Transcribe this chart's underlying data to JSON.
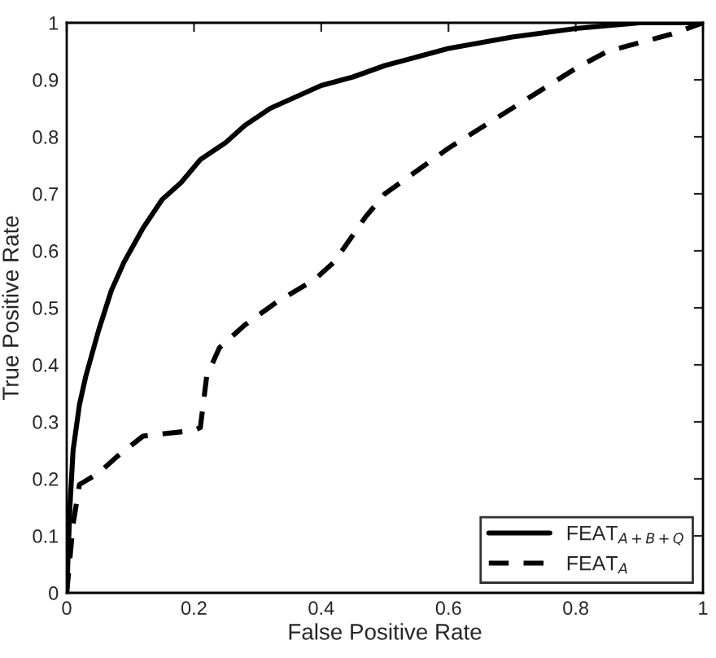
{
  "chart_data": {
    "type": "line",
    "xlabel": "False Positive Rate",
    "ylabel": "True Positive Rate",
    "xlim": [
      0,
      1
    ],
    "ylim": [
      0,
      1
    ],
    "xticks": [
      0,
      0.2,
      0.4,
      0.6,
      0.8,
      1
    ],
    "yticks": [
      0,
      0.1,
      0.2,
      0.3,
      0.4,
      0.5,
      0.6,
      0.7,
      0.8,
      0.9,
      1
    ],
    "grid": false,
    "legend": "bottom right",
    "series": [
      {
        "name": "FEAT$_{A+B+Q}$",
        "color": "#000000",
        "line_style": "solid",
        "x": [
          0,
          0.005,
          0.01,
          0.02,
          0.03,
          0.05,
          0.07,
          0.09,
          0.12,
          0.15,
          0.18,
          0.21,
          0.25,
          0.28,
          0.32,
          0.36,
          0.4,
          0.45,
          0.5,
          0.55,
          0.6,
          0.7,
          0.8,
          0.9,
          1
        ],
        "values": [
          0,
          0.15,
          0.25,
          0.33,
          0.38,
          0.46,
          0.53,
          0.58,
          0.64,
          0.69,
          0.72,
          0.76,
          0.79,
          0.82,
          0.85,
          0.87,
          0.89,
          0.905,
          0.925,
          0.94,
          0.955,
          0.975,
          0.99,
          1,
          1
        ]
      },
      {
        "name": "FEAT$_{A}$",
        "color": "#000000",
        "line_style": "dashed",
        "x": [
          0,
          0.01,
          0.02,
          0.05,
          0.08,
          0.12,
          0.2,
          0.21,
          0.22,
          0.24,
          0.28,
          0.33,
          0.39,
          0.42,
          0.47,
          0.5,
          0.55,
          0.6,
          0.7,
          0.8,
          0.85,
          0.95,
          1
        ],
        "values": [
          0,
          0.12,
          0.19,
          0.21,
          0.24,
          0.275,
          0.285,
          0.29,
          0.38,
          0.43,
          0.47,
          0.51,
          0.55,
          0.58,
          0.66,
          0.7,
          0.74,
          0.78,
          0.85,
          0.92,
          0.95,
          0.98,
          1
        ]
      }
    ]
  }
}
